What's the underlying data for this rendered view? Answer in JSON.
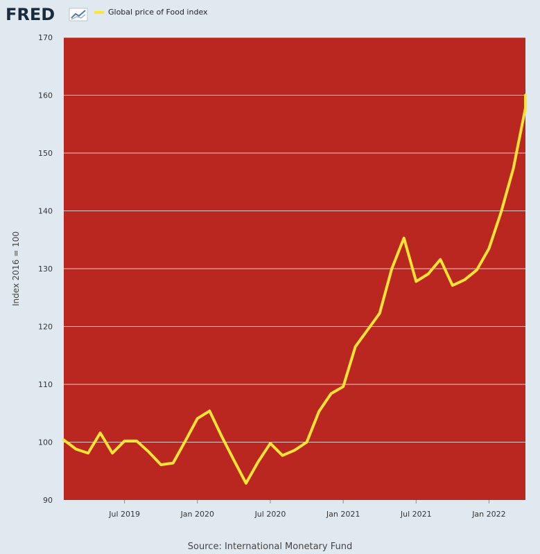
{
  "brand": "FRED",
  "icons": {
    "logo_chart": "chart-trend-icon"
  },
  "colors": {
    "plot_bg": "#ba2620",
    "line": "#ffe433",
    "page_bg": "#e1e9f0"
  },
  "legend": {
    "label": "Global price of Food index"
  },
  "source": "Source: International Monetary Fund",
  "chart_data": {
    "type": "line",
    "title": "",
    "ylabel": "Index 2016 = 100",
    "xlabel": "",
    "ylim": [
      90,
      170
    ],
    "yticks": [
      90,
      100,
      110,
      120,
      130,
      140,
      150,
      160,
      170
    ],
    "xlim": [
      "2019-02",
      "2022-04"
    ],
    "xticks": [
      {
        "date": "2019-07",
        "label": "Jul 2019"
      },
      {
        "date": "2020-01",
        "label": "Jan 2020"
      },
      {
        "date": "2020-07",
        "label": "Jul 2020"
      },
      {
        "date": "2021-01",
        "label": "Jan 2021"
      },
      {
        "date": "2021-07",
        "label": "Jul 2021"
      },
      {
        "date": "2022-01",
        "label": "Jan 2022"
      }
    ],
    "grid": true,
    "legend_position": "top-left",
    "series": [
      {
        "name": "Global price of Food index",
        "x": [
          "2019-02",
          "2019-03",
          "2019-04",
          "2019-05",
          "2019-06",
          "2019-07",
          "2019-08",
          "2019-09",
          "2019-10",
          "2019-11",
          "2019-12",
          "2020-01",
          "2020-02",
          "2020-03",
          "2020-04",
          "2020-05",
          "2020-06",
          "2020-07",
          "2020-08",
          "2020-09",
          "2020-10",
          "2020-11",
          "2020-12",
          "2021-01",
          "2021-02",
          "2021-03",
          "2021-04",
          "2021-05",
          "2021-06",
          "2021-07",
          "2021-08",
          "2021-09",
          "2021-10",
          "2021-11",
          "2021-12",
          "2022-01",
          "2022-02",
          "2022-03",
          "2022-04"
        ],
        "values": [
          100.4,
          98.8,
          98.1,
          101.6,
          98.1,
          100.2,
          100.2,
          98.3,
          96.1,
          96.4,
          100.2,
          104.1,
          105.4,
          101.0,
          96.9,
          92.9,
          96.6,
          99.8,
          97.7,
          98.6,
          100.0,
          105.3,
          108.4,
          109.6,
          116.5,
          119.4,
          122.3,
          130.0,
          135.3,
          127.8,
          129.1,
          131.6,
          127.1,
          128.1,
          129.8,
          133.5,
          139.8,
          147.3,
          157.8
        ]
      }
    ],
    "last_value_note": "",
    "final_point": {
      "date": "2022-05",
      "value": 160.0
    }
  }
}
